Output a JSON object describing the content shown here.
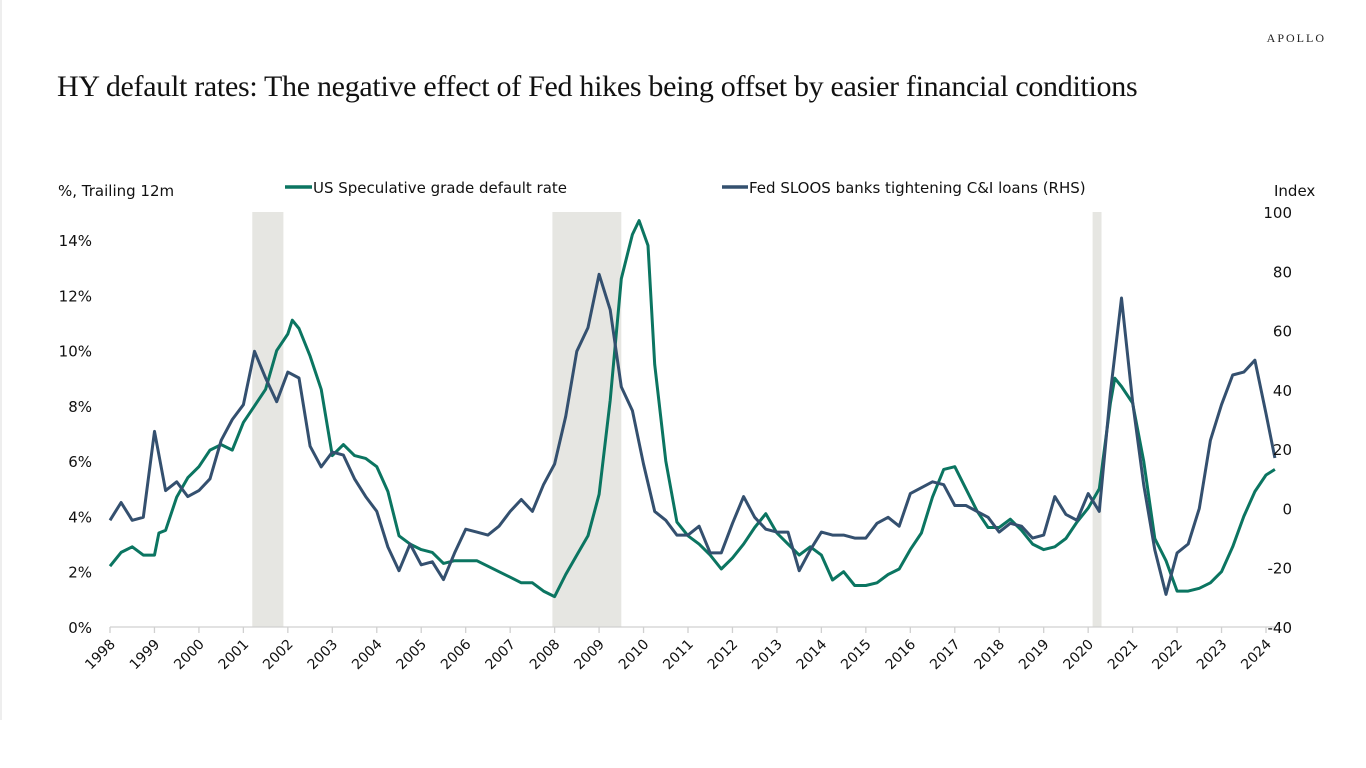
{
  "brand": "APOLLO",
  "title": "HY default rates: The negative effect of Fed hikes being offset by easier financial conditions",
  "chart_data": {
    "type": "line",
    "title": "HY default rates: The negative effect of Fed hikes being offset by easier financial conditions",
    "ylabel_left": "%, Trailing 12m",
    "ylabel_right": "Index",
    "ylim_left": [
      0,
      14
    ],
    "ylim_right": [
      -40,
      100
    ],
    "yticks_left": [
      "0%",
      "2%",
      "4%",
      "6%",
      "8%",
      "10%",
      "12%",
      "14%"
    ],
    "yticks_left_values": [
      0,
      2,
      4,
      6,
      8,
      10,
      12,
      14
    ],
    "yticks_right": [
      "-40",
      "-20",
      "0",
      "20",
      "40",
      "60",
      "80",
      "100"
    ],
    "yticks_right_values": [
      -40,
      -20,
      0,
      20,
      40,
      60,
      80,
      100
    ],
    "xlim": [
      1998,
      2024.5
    ],
    "xticks": [
      "1998",
      "1999",
      "2000",
      "2001",
      "2002",
      "2003",
      "2004",
      "2005",
      "2006",
      "2007",
      "2008",
      "2009",
      "2010",
      "2011",
      "2012",
      "2013",
      "2014",
      "2015",
      "2016",
      "2017",
      "2018",
      "2019",
      "2020",
      "2021",
      "2022",
      "2023",
      "2024"
    ],
    "grid": false,
    "legend_position": "top",
    "recessions": [
      [
        2001.2,
        2001.9
      ],
      [
        2007.95,
        2009.5
      ],
      [
        2020.1,
        2020.3
      ]
    ],
    "colors": {
      "hy": "#0b7561",
      "sloos": "#34506f",
      "recession": "#e6e6e2",
      "axis": "#d0d0d0"
    },
    "series": [
      {
        "name": "US Speculative grade default rate",
        "axis": "left",
        "x": [
          1998.0,
          1998.25,
          1998.5,
          1998.75,
          1999.0,
          1999.1,
          1999.25,
          1999.5,
          1999.75,
          2000.0,
          2000.25,
          2000.5,
          2000.75,
          2001.0,
          2001.25,
          2001.5,
          2001.75,
          2002.0,
          2002.1,
          2002.25,
          2002.5,
          2002.75,
          2003.0,
          2003.25,
          2003.5,
          2003.75,
          2004.0,
          2004.25,
          2004.5,
          2004.75,
          2005.0,
          2005.25,
          2005.5,
          2005.75,
          2006.0,
          2006.25,
          2006.5,
          2006.75,
          2007.0,
          2007.25,
          2007.5,
          2007.75,
          2008.0,
          2008.25,
          2008.5,
          2008.75,
          2009.0,
          2009.25,
          2009.5,
          2009.75,
          2009.9,
          2010.1,
          2010.25,
          2010.5,
          2010.75,
          2011.0,
          2011.25,
          2011.5,
          2011.75,
          2012.0,
          2012.25,
          2012.5,
          2012.75,
          2013.0,
          2013.25,
          2013.5,
          2013.75,
          2014.0,
          2014.25,
          2014.5,
          2014.75,
          2015.0,
          2015.25,
          2015.5,
          2015.75,
          2016.0,
          2016.25,
          2016.5,
          2016.75,
          2017.0,
          2017.25,
          2017.5,
          2017.75,
          2018.0,
          2018.25,
          2018.5,
          2018.75,
          2019.0,
          2019.25,
          2019.5,
          2019.75,
          2020.0,
          2020.25,
          2020.5,
          2020.6,
          2020.75,
          2021.0,
          2021.25,
          2021.5,
          2021.75,
          2022.0,
          2022.25,
          2022.5,
          2022.75,
          2023.0,
          2023.25,
          2023.5,
          2023.75,
          2024.0,
          2024.2
        ],
        "values": [
          2.2,
          2.7,
          2.9,
          2.6,
          2.6,
          3.4,
          3.5,
          4.7,
          5.4,
          5.8,
          6.4,
          6.6,
          6.4,
          7.4,
          8.0,
          8.6,
          10.0,
          10.6,
          11.1,
          10.8,
          9.8,
          8.6,
          6.2,
          6.6,
          6.2,
          6.1,
          5.8,
          4.9,
          3.3,
          3.0,
          2.8,
          2.7,
          2.3,
          2.4,
          2.4,
          2.4,
          2.2,
          2.0,
          1.8,
          1.6,
          1.6,
          1.3,
          1.1,
          1.9,
          2.6,
          3.3,
          4.8,
          8.2,
          12.6,
          14.2,
          14.7,
          13.8,
          9.5,
          6.0,
          3.8,
          3.3,
          3.0,
          2.6,
          2.1,
          2.5,
          3.0,
          3.6,
          4.1,
          3.4,
          3.0,
          2.6,
          2.9,
          2.6,
          1.7,
          2.0,
          1.5,
          1.5,
          1.6,
          1.9,
          2.1,
          2.8,
          3.4,
          4.7,
          5.7,
          5.8,
          5.0,
          4.2,
          3.6,
          3.6,
          3.9,
          3.5,
          3.0,
          2.8,
          2.9,
          3.2,
          3.8,
          4.3,
          5.0,
          8.1,
          9.0,
          8.7,
          8.1,
          6.0,
          3.2,
          2.4,
          1.3,
          1.3,
          1.4,
          1.6,
          2.0,
          2.9,
          4.0,
          4.9,
          5.5,
          5.7
        ]
      },
      {
        "name": "Fed SLOOS banks tightening C&I loans (RHS)",
        "axis": "right",
        "x": [
          1998.0,
          1998.25,
          1998.5,
          1998.75,
          1999.0,
          1999.25,
          1999.5,
          1999.75,
          2000.0,
          2000.25,
          2000.5,
          2000.75,
          2001.0,
          2001.25,
          2001.5,
          2001.75,
          2002.0,
          2002.25,
          2002.5,
          2002.75,
          2003.0,
          2003.25,
          2003.5,
          2003.75,
          2004.0,
          2004.25,
          2004.5,
          2004.75,
          2005.0,
          2005.25,
          2005.5,
          2005.75,
          2006.0,
          2006.25,
          2006.5,
          2006.75,
          2007.0,
          2007.25,
          2007.5,
          2007.75,
          2008.0,
          2008.25,
          2008.5,
          2008.75,
          2009.0,
          2009.25,
          2009.5,
          2009.75,
          2010.0,
          2010.25,
          2010.5,
          2010.75,
          2011.0,
          2011.25,
          2011.5,
          2011.75,
          2012.0,
          2012.25,
          2012.5,
          2012.75,
          2013.0,
          2013.25,
          2013.5,
          2013.75,
          2014.0,
          2014.25,
          2014.5,
          2014.75,
          2015.0,
          2015.25,
          2015.5,
          2015.75,
          2016.0,
          2016.25,
          2016.5,
          2016.75,
          2017.0,
          2017.25,
          2017.5,
          2017.75,
          2018.0,
          2018.25,
          2018.5,
          2018.75,
          2019.0,
          2019.25,
          2019.5,
          2019.75,
          2020.0,
          2020.25,
          2020.5,
          2020.75,
          2021.0,
          2021.25,
          2021.5,
          2021.75,
          2022.0,
          2022.25,
          2022.5,
          2022.75,
          2023.0,
          2023.25,
          2023.5,
          2023.75,
          2024.0,
          2024.2
        ],
        "values": [
          -4,
          2,
          -4,
          -3,
          26,
          6,
          9,
          4,
          6,
          10,
          23,
          30,
          35,
          53,
          44,
          36,
          46,
          44,
          21,
          14,
          19,
          18,
          10,
          4,
          -1,
          -13,
          -21,
          -12,
          -19,
          -18,
          -24,
          -15,
          -7,
          -8,
          -9,
          -6,
          -1,
          3,
          -1,
          8,
          15,
          31,
          53,
          61,
          79,
          67,
          41,
          33,
          15,
          -1,
          -4,
          -9,
          -9,
          -6,
          -15,
          -15,
          -5,
          4,
          -3,
          -7,
          -8,
          -8,
          -21,
          -14,
          -8,
          -9,
          -9,
          -10,
          -10,
          -5,
          -3,
          -6,
          5,
          7,
          9,
          8,
          1,
          1,
          -1,
          -3,
          -8,
          -5,
          -6,
          -10,
          -9,
          4,
          -2,
          -4,
          5,
          -1,
          39,
          71,
          36,
          8,
          -14,
          -29,
          -15,
          -12,
          0,
          23,
          35,
          45,
          46,
          50,
          32,
          17
        ]
      }
    ]
  }
}
